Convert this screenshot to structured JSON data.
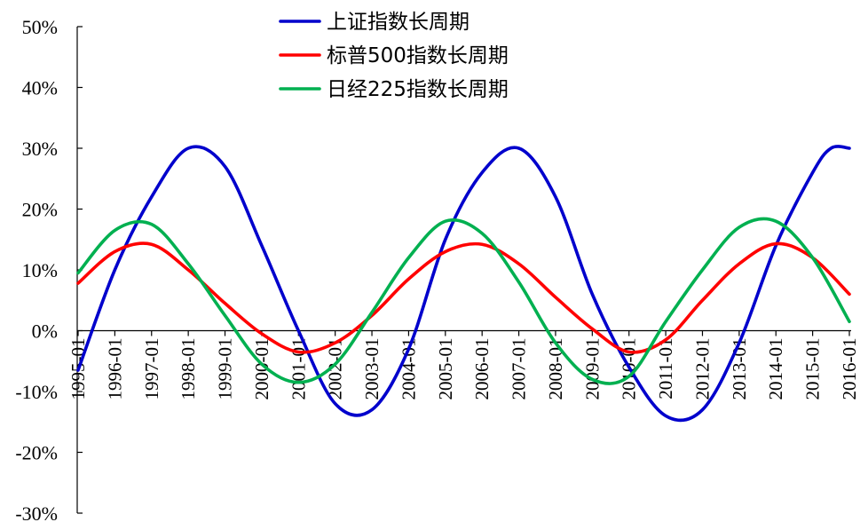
{
  "chart_data": {
    "type": "line",
    "x_labels": [
      "1995-01",
      "1996-01",
      "1997-01",
      "1998-01",
      "1999-01",
      "2000-01",
      "2001-01",
      "2002-01",
      "2003-01",
      "2004-01",
      "2005-01",
      "2006-01",
      "2007-01",
      "2008-01",
      "2009-01",
      "2010-01",
      "2011-01",
      "2012-01",
      "2013-01",
      "2014-01",
      "2015-01",
      "2016-01"
    ],
    "y_ticks": [
      "50%",
      "40%",
      "30%",
      "20%",
      "10%",
      "0%",
      "-10%",
      "-20%",
      "-30%"
    ],
    "ylim": [
      -30,
      50
    ],
    "y_unit": "%",
    "legend_position": "top",
    "grid": false,
    "series": [
      {
        "name": "上证指数长周期",
        "color": "#0000cc",
        "x": [
          "1995-01",
          "1996-01",
          "1997-01",
          "1998-01",
          "1999-01",
          "2000-01",
          "2001-01",
          "2002-01",
          "2003-01",
          "2004-01",
          "2005-01",
          "2006-01",
          "2007-01",
          "2008-01",
          "2009-01",
          "2010-01",
          "2011-01",
          "2012-01",
          "2013-01",
          "2014-01",
          "2015-01",
          "2015-07",
          "2016-01"
        ],
        "values": [
          -6.5,
          10,
          22,
          30,
          27,
          14,
          0,
          -12,
          -13,
          -3,
          15,
          26,
          30,
          22,
          6,
          -6,
          -14,
          -13,
          -2,
          14,
          26,
          30,
          30
        ]
      },
      {
        "name": "标普500指数长周期",
        "color": "#ff0000",
        "x": [
          "1995-01",
          "1996-01",
          "1997-01",
          "1998-01",
          "1999-01",
          "2000-01",
          "2001-01",
          "2002-01",
          "2003-01",
          "2004-01",
          "2005-01",
          "2006-01",
          "2007-01",
          "2008-01",
          "2009-01",
          "2010-01",
          "2011-01",
          "2012-01",
          "2013-01",
          "2014-01",
          "2015-01",
          "2016-01"
        ],
        "values": [
          7.8,
          13,
          14.2,
          10,
          4.5,
          -0.5,
          -3.5,
          -2,
          2.5,
          8.5,
          13,
          14.2,
          11,
          5.5,
          0.3,
          -3.5,
          -1.5,
          5,
          11,
          14.3,
          12,
          6
        ]
      },
      {
        "name": "日经225指数长周期",
        "color": "#00b050",
        "x": [
          "1995-01",
          "1996-01",
          "1997-01",
          "1998-01",
          "1999-01",
          "2000-01",
          "2001-01",
          "2002-01",
          "2003-01",
          "2004-01",
          "2005-01",
          "2006-01",
          "2007-01",
          "2008-01",
          "2009-01",
          "2010-01",
          "2011-01",
          "2012-01",
          "2013-01",
          "2014-01",
          "2015-01",
          "2016-01"
        ],
        "values": [
          9.5,
          16.5,
          17.5,
          11,
          2.5,
          -5.5,
          -8.5,
          -5.5,
          3,
          12,
          18,
          16,
          8,
          -2,
          -8,
          -7.5,
          1.5,
          10,
          17,
          18,
          12,
          1.5
        ]
      }
    ]
  }
}
